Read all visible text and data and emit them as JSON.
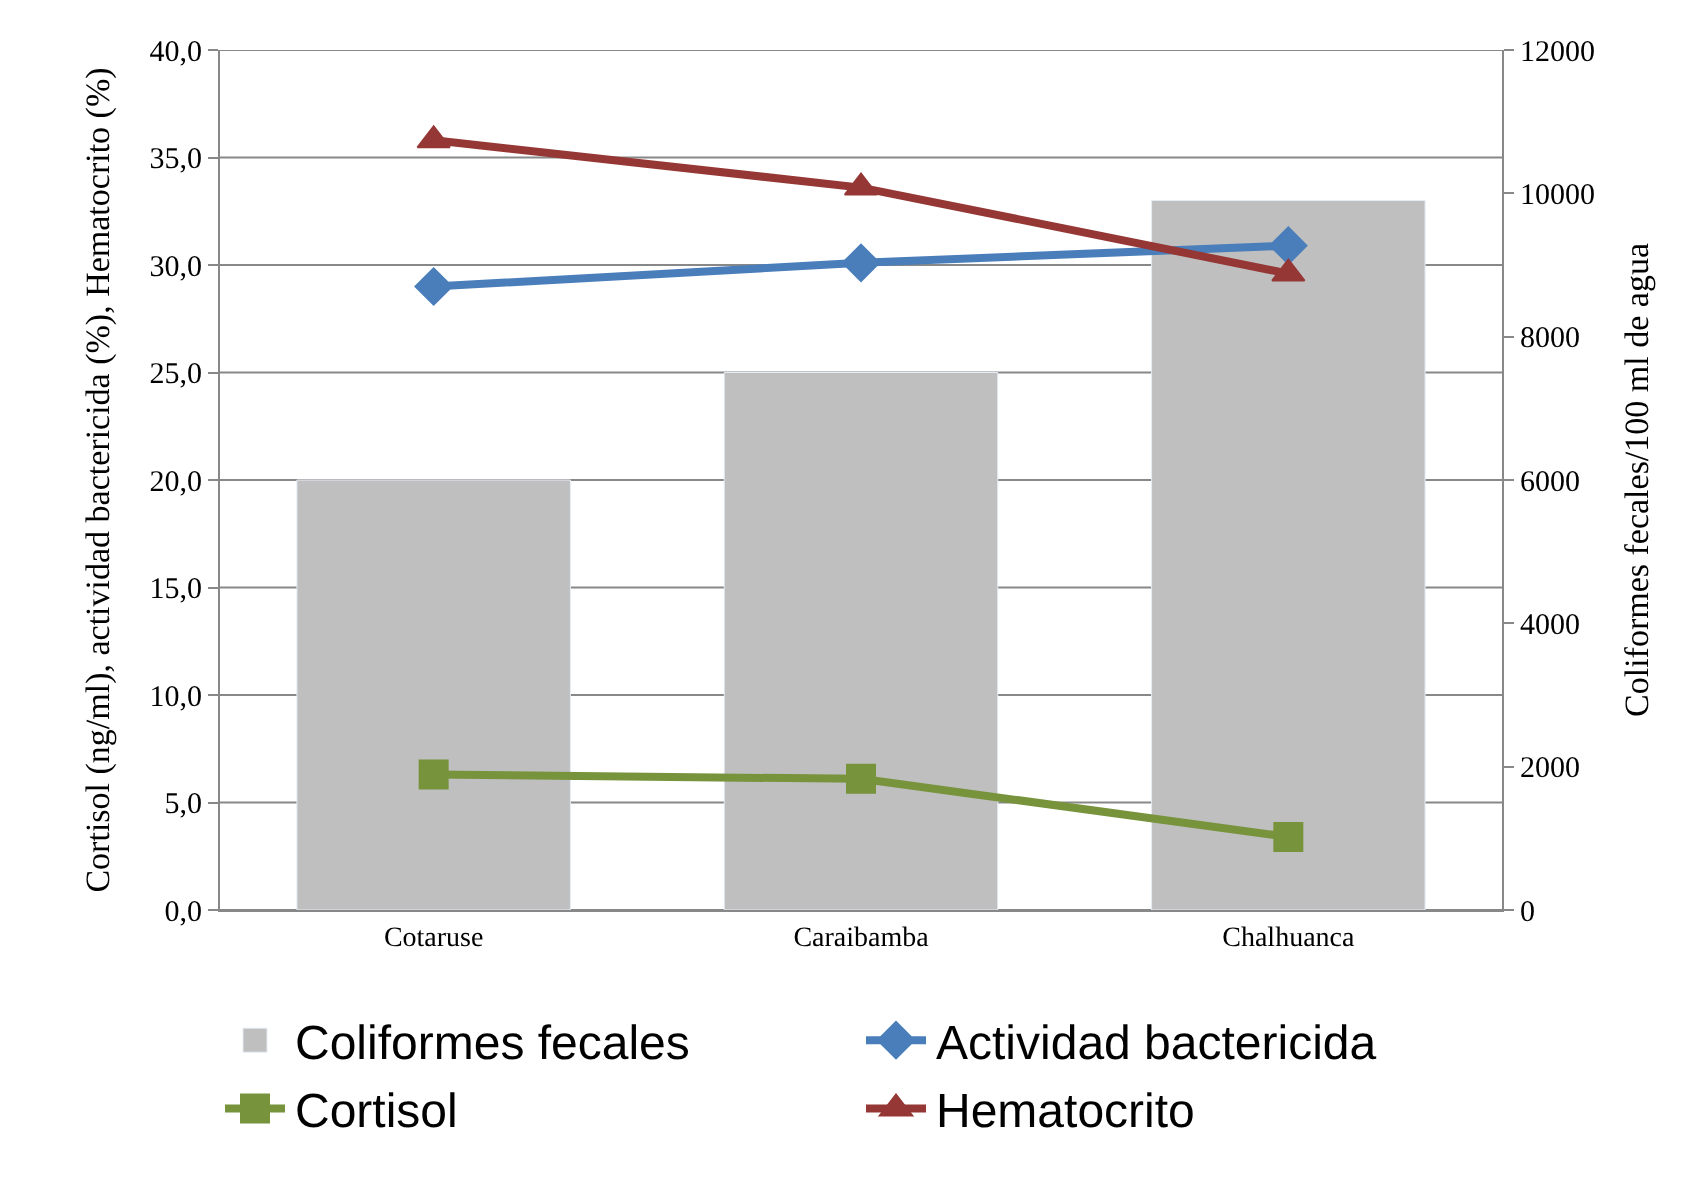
{
  "chart_data": {
    "type": "bar",
    "categories": [
      "Cotaruse",
      "Caraibamba",
      "Chalhuanca"
    ],
    "ylabel": "Cortisol (ng/ml), actividad bactericida (%), Hematocrito (%)",
    "y2label": "Coliformes fecales/100 ml de agua",
    "series": [
      {
        "name": "Coliformes fecales",
        "axis": "y2",
        "color": "#bfbfbf",
        "values": [
          6000,
          7500,
          9900
        ]
      },
      {
        "name": "Actividad bactericida",
        "type": "line",
        "marker": "diamond",
        "color": "#4a7ebb",
        "values": [
          29.0,
          30.1,
          30.9
        ]
      },
      {
        "name": "Cortisol",
        "type": "line",
        "marker": "square",
        "color": "#77933c",
        "values": [
          6.3,
          6.1,
          3.4
        ]
      },
      {
        "name": "Hematocrito",
        "type": "line",
        "marker": "triangle",
        "color": "#953735",
        "values": [
          35.8,
          33.6,
          29.6
        ]
      }
    ],
    "ylim": [
      0,
      40
    ],
    "yticks": [
      {
        "value": 0,
        "label": "0,0"
      },
      {
        "value": 5,
        "label": "5,0"
      },
      {
        "value": 10,
        "label": "10,0"
      },
      {
        "value": 15,
        "label": "15,0"
      },
      {
        "value": 20,
        "label": "20,0"
      },
      {
        "value": 25,
        "label": "25,0"
      },
      {
        "value": 30,
        "label": "30,0"
      },
      {
        "value": 35,
        "label": "35,0"
      },
      {
        "value": 40,
        "label": "40,0"
      }
    ],
    "y2lim": [
      0,
      12000
    ],
    "y2ticks": [
      0,
      2000,
      4000,
      6000,
      8000,
      10000,
      12000
    ],
    "grid": "y",
    "legend": "bottom",
    "line_style": "solid"
  }
}
